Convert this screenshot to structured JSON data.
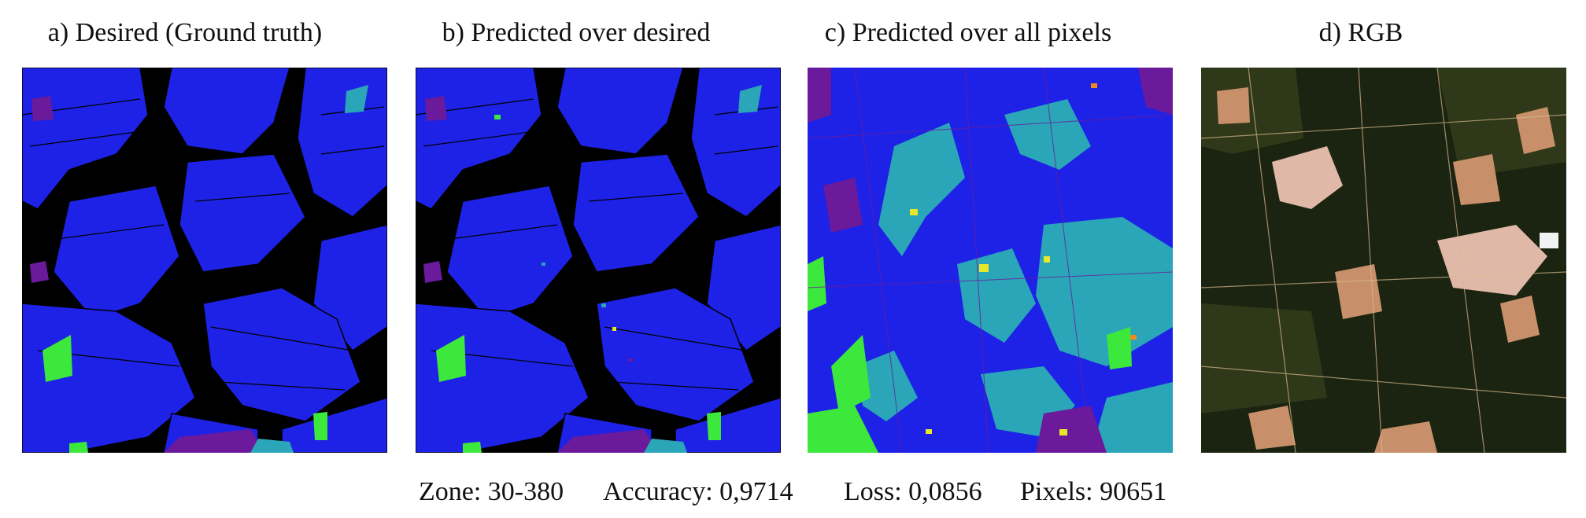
{
  "panels": [
    {
      "title": "a) Desired (Ground truth)"
    },
    {
      "title": "b) Predicted over desired"
    },
    {
      "title": "c) Predicted over all pixels"
    },
    {
      "title": "d) RGB"
    }
  ],
  "stats": {
    "zone": "Zone: 30-380",
    "accuracy": "Accuracy: 0,9714",
    "loss": "Loss: 0,0856",
    "pixels": "Pixels: 90651"
  },
  "colors": {
    "background": "#000000",
    "class_main": "#1e22e6",
    "class_cyan": "#2aa6b8",
    "class_green": "#3ce83c",
    "class_purple": "#6a1a9a",
    "class_yellow": "#e8e82a",
    "class_orange": "#f08a1c",
    "rgb_dark": "#1b2410",
    "rgb_field": "#c8906a",
    "rgb_urban": "#e0b8a8"
  }
}
